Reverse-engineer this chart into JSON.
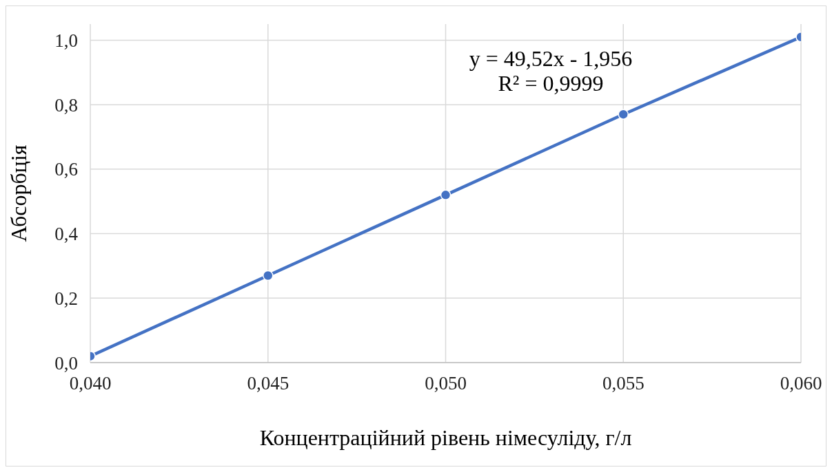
{
  "chart_data": {
    "type": "line",
    "xlabel": "Концентраційний рівень німесуліду, г/л",
    "ylabel": "Абсорбція",
    "x": [
      0.04,
      0.045,
      0.05,
      0.055,
      0.06
    ],
    "series": [
      {
        "color": "#4472c4",
        "values": [
          0.02,
          0.27,
          0.52,
          0.77,
          1.01
        ]
      }
    ],
    "xlim": [
      0.04,
      0.06
    ],
    "xticks": [
      {
        "value": 0.04,
        "label": "0,040"
      },
      {
        "value": 0.045,
        "label": "0,045"
      },
      {
        "value": 0.05,
        "label": "0,050"
      },
      {
        "value": 0.055,
        "label": "0,055"
      },
      {
        "value": 0.06,
        "label": "0,060"
      }
    ],
    "ylim": [
      0,
      1.05
    ],
    "yticks": [
      {
        "value": 0,
        "label": "0,0"
      },
      {
        "value": 0.2,
        "label": "0,2"
      },
      {
        "value": 0.4,
        "label": "0,4"
      },
      {
        "value": 0.6,
        "label": "0,6"
      },
      {
        "value": 0.8,
        "label": "0,8"
      },
      {
        "value": 1.0,
        "label": "1,0"
      }
    ],
    "annotations": [
      "y = 49,52x - 1,956",
      "R² = 0,9999"
    ],
    "grid": true,
    "marker": "circle",
    "line_style": "solid"
  }
}
